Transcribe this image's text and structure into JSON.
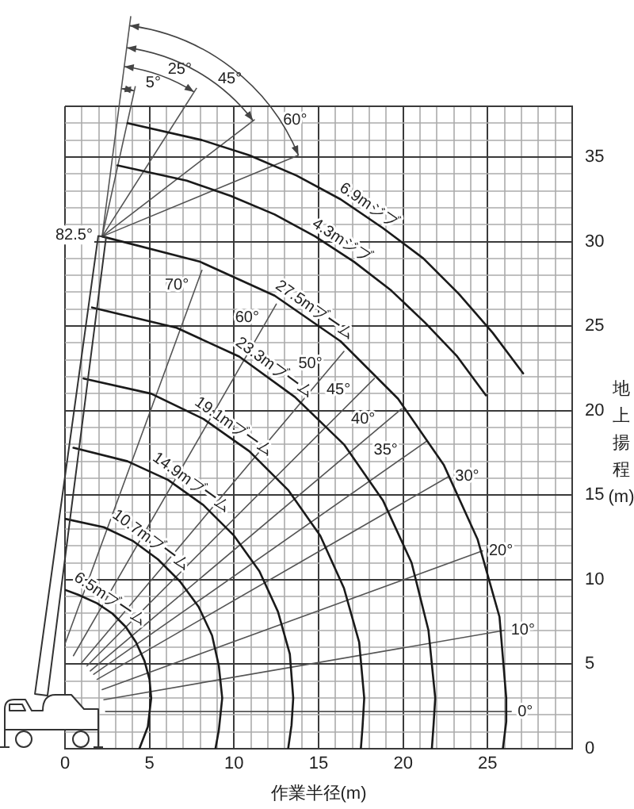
{
  "chart_data": {
    "type": "line",
    "xlabel": "作業半径(m)",
    "ylabel": "地上揚程(m)",
    "xlim": [
      0,
      30
    ],
    "ylim": [
      0,
      38
    ],
    "xticks": [
      0,
      {
        "value": 1,
        "label": null
      },
      {
        "value": 2,
        "label": null
      },
      {
        "value": 3,
        "label": null
      },
      {
        "value": 4,
        "label": null
      },
      5,
      {
        "value": 6,
        "label": null
      },
      {
        "value": 7,
        "label": null
      },
      {
        "value": 8,
        "label": null
      },
      {
        "value": 9,
        "label": null
      },
      10,
      {
        "value": 11,
        "label": null
      },
      {
        "value": 12,
        "label": null
      },
      {
        "value": 13,
        "label": null
      },
      {
        "value": 14,
        "label": null
      },
      15,
      {
        "value": 16,
        "label": null
      },
      {
        "value": 17,
        "label": null
      },
      {
        "value": 18,
        "label": null
      },
      {
        "value": 19,
        "label": null
      },
      20,
      {
        "value": 21,
        "label": null
      },
      {
        "value": 22,
        "label": null
      },
      {
        "value": 23,
        "label": null
      },
      {
        "value": 24,
        "label": null
      },
      25,
      {
        "value": 26,
        "label": null
      },
      {
        "value": 27,
        "label": null
      },
      {
        "value": 28,
        "label": null
      },
      {
        "value": 29,
        "label": null
      },
      {
        "value": 30,
        "label": null
      }
    ],
    "yticks": [
      0,
      {
        "value": 1,
        "label": null
      },
      {
        "value": 2,
        "label": null
      },
      {
        "value": 3,
        "label": null
      },
      {
        "value": 4,
        "label": null
      },
      5,
      {
        "value": 6,
        "label": null
      },
      {
        "value": 7,
        "label": null
      },
      {
        "value": 8,
        "label": null
      },
      {
        "value": 9,
        "label": null
      },
      10,
      {
        "value": 11,
        "label": null
      },
      {
        "value": 12,
        "label": null
      },
      {
        "value": 13,
        "label": null
      },
      {
        "value": 14,
        "label": null
      },
      15,
      {
        "value": 16,
        "label": null
      },
      {
        "value": 17,
        "label": null
      },
      {
        "value": 18,
        "label": null
      },
      {
        "value": 19,
        "label": null
      },
      20,
      {
        "value": 21,
        "label": null
      },
      {
        "value": 22,
        "label": null
      },
      {
        "value": 23,
        "label": null
      },
      {
        "value": 24,
        "label": null
      },
      25,
      {
        "value": 26,
        "label": null
      },
      {
        "value": 27,
        "label": null
      },
      {
        "value": 28,
        "label": null
      },
      {
        "value": 29,
        "label": null
      },
      30,
      {
        "value": 31,
        "label": null
      },
      {
        "value": 32,
        "label": null
      },
      {
        "value": 33,
        "label": null
      },
      {
        "value": 34,
        "label": null
      },
      35,
      {
        "value": 36,
        "label": null
      },
      {
        "value": 37,
        "label": null
      },
      {
        "value": 38,
        "label": null
      }
    ],
    "grid": true,
    "series": [
      {
        "color": "#1a1a1a",
        "x": [
          0,
          0.8,
          1.9,
          2.8,
          3.6,
          4.2,
          4.7,
          5.0,
          5.1,
          4.9,
          4.4
        ],
        "values": [
          9.4,
          9.1,
          8.6,
          8.0,
          7.2,
          6.3,
          5.2,
          4.1,
          3.0,
          1.3,
          0
        ]
      },
      {
        "color": "#1a1a1a",
        "x": [
          0.0,
          2.3,
          4.0,
          5.5,
          6.8,
          7.9,
          8.7,
          9.1,
          9.3,
          9.1,
          8.9
        ],
        "values": [
          13.6,
          13.1,
          12.3,
          11.2,
          9.9,
          8.4,
          6.7,
          4.9,
          3.0,
          1.1,
          0
        ]
      },
      {
        "color": "#1a1a1a",
        "x": [
          0.5,
          3.7,
          6.1,
          8.2,
          10.0,
          11.5,
          12.6,
          13.3,
          13.5,
          13.4,
          13.2
        ],
        "values": [
          17.8,
          17.0,
          15.9,
          14.4,
          12.6,
          10.5,
          8.1,
          5.6,
          3.0,
          1.4,
          0
        ]
      },
      {
        "color": "#1a1a1a",
        "x": [
          1.1,
          5.1,
          8.2,
          10.9,
          13.2,
          15.1,
          16.5,
          17.4,
          17.7,
          17.6,
          17.5
        ],
        "values": [
          21.9,
          21.0,
          19.5,
          17.6,
          15.3,
          12.6,
          9.5,
          6.3,
          3.0,
          1.3,
          0
        ]
      },
      {
        "color": "#1a1a1a",
        "x": [
          1.6,
          6.6,
          10.3,
          13.6,
          16.5,
          18.8,
          20.5,
          21.5,
          21.9,
          21.8,
          21.7
        ],
        "values": [
          26.1,
          24.9,
          23.2,
          20.8,
          18.0,
          14.7,
          11.0,
          7.0,
          3.0,
          1.4,
          0
        ]
      },
      {
        "color": "#1a1a1a",
        "x": [
          2.2,
          8.0,
          12.4,
          16.3,
          19.7,
          22.4,
          24.4,
          25.7,
          26.1,
          26.1,
          25.9
        ],
        "values": [
          30.3,
          28.8,
          26.8,
          24.1,
          20.7,
          16.8,
          12.4,
          7.8,
          3.0,
          1.6,
          0
        ]
      },
      {
        "color": "#1a1a1a",
        "x": [
          3.7,
          8.1,
          10.9,
          13.7,
          16.3,
          18.8,
          21.2,
          23.3,
          25.3,
          27.1
        ],
        "values": [
          37.0,
          36.0,
          35.1,
          33.9,
          32.5,
          30.8,
          29.0,
          26.9,
          24.6,
          22.2
        ]
      },
      {
        "color": "#1a1a1a",
        "x": [
          3.1,
          7.2,
          9.8,
          12.4,
          14.8,
          17.1,
          19.3,
          21.3,
          23.2,
          24.9
        ],
        "values": [
          34.5,
          33.6,
          32.7,
          31.6,
          30.3,
          28.8,
          27.1,
          25.2,
          23.2,
          20.9
        ]
      },
      {
        "name": "0°",
        "color": "#555555",
        "x": [
          2.4,
          26.4
        ],
        "values": [
          2.2,
          2.2
        ]
      },
      {
        "name": "10°",
        "color": "#555555",
        "x": [
          2.3,
          26.0
        ],
        "values": [
          2.9,
          7.0
        ]
      },
      {
        "name": "20°",
        "color": "#555555",
        "x": [
          2.2,
          24.7
        ],
        "values": [
          3.5,
          11.7
        ]
      },
      {
        "name": "30°",
        "color": "#555555",
        "x": [
          1.9,
          22.7
        ],
        "values": [
          4.1,
          16.1
        ]
      },
      {
        "name": "35°",
        "color": "#555555",
        "x": [
          1.7,
          21.4
        ],
        "values": [
          4.4,
          18.2
        ]
      },
      {
        "name": "40°",
        "color": "#555555",
        "x": [
          1.5,
          19.9
        ],
        "values": [
          4.6,
          20.1
        ]
      },
      {
        "name": "45°",
        "color": "#555555",
        "x": [
          1.3,
          18.3
        ],
        "values": [
          4.9,
          21.9
        ]
      },
      {
        "name": "50°",
        "color": "#555555",
        "x": [
          1.0,
          16.5
        ],
        "values": [
          5.1,
          23.5
        ]
      },
      {
        "name": "60°",
        "color": "#555555",
        "x": [
          0.5,
          12.5
        ],
        "values": [
          5.5,
          26.3
        ]
      },
      {
        "name": "70°",
        "color": "#555555",
        "x": [
          0.0,
          8.1
        ],
        "values": [
          6.2,
          28.3
        ]
      },
      {
        "color": "#555555",
        "x": [
          2.2,
          3.2
        ],
        "values": [
          30.3,
          38
        ]
      },
      {
        "name": "5°",
        "color": "#555555",
        "x": [
          2.2,
          3.9
        ],
        "values": [
          30.3,
          38
        ]
      },
      {
        "name": "25°",
        "color": "#555555",
        "x": [
          2.2,
          7.1
        ],
        "values": [
          30.3,
          38
        ]
      },
      {
        "name": "45°",
        "color": "#555555",
        "x": [
          2.2,
          11.2
        ],
        "values": [
          30.3,
          37.2
        ]
      },
      {
        "name": "60°",
        "color": "#555555",
        "x": [
          2.2,
          13.8
        ],
        "values": [
          30.3,
          35.1
        ]
      }
    ],
    "annotations": [
      {
        "text": "6.5mブーム",
        "x": 2.3,
        "y": 8.3
      },
      {
        "text": "10.7mブーム",
        "x": 4.7,
        "y": 11.8
      },
      {
        "text": "14.9mブーム",
        "x": 7.1,
        "y": 15.2
      },
      {
        "text": "19.1mブーム",
        "x": 9.6,
        "y": 18.5
      },
      {
        "text": "23.3mブーム",
        "x": 12.0,
        "y": 22.0
      },
      {
        "text": "27.5mブーム",
        "x": 14.4,
        "y": 25.4
      },
      {
        "text": "6.9mジブ",
        "x": 17.6,
        "y": 31.6
      },
      {
        "text": "4.3mジブ",
        "x": 16.0,
        "y": 29.5
      },
      {
        "text": "82.5°",
        "x": 2.2,
        "y": 30.3
      }
    ]
  }
}
